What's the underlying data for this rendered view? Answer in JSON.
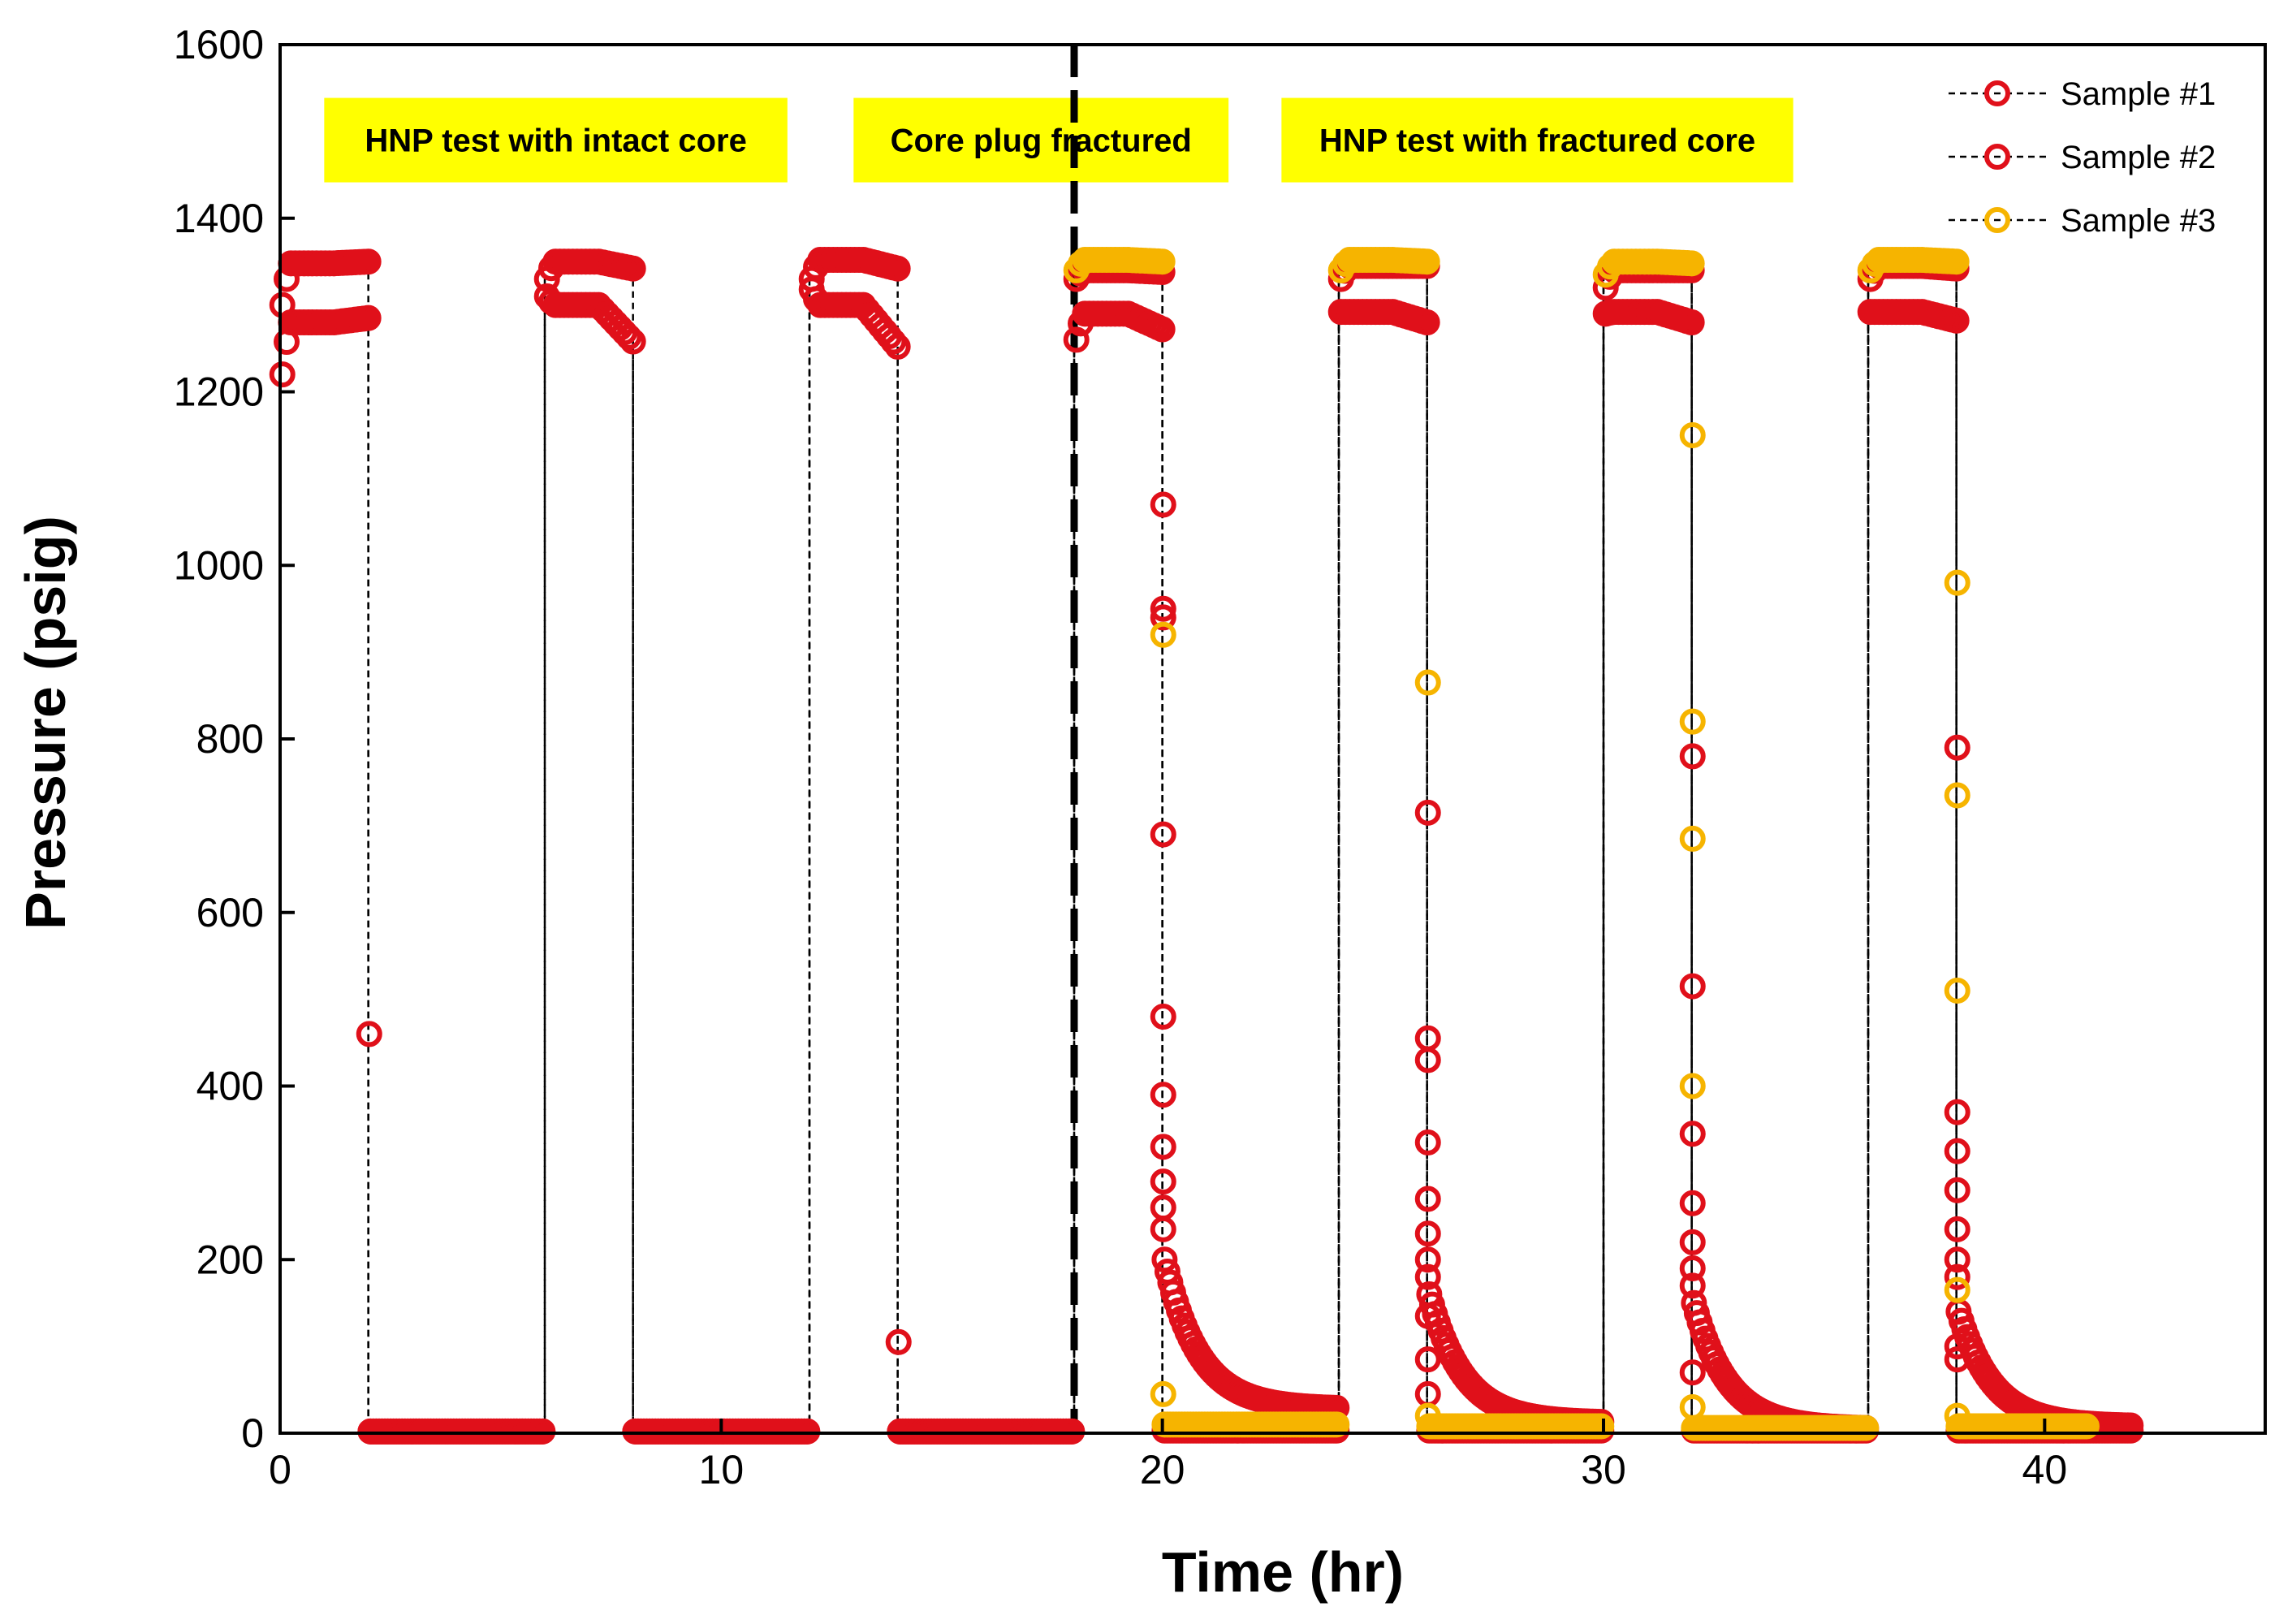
{
  "chart_data": {
    "type": "scatter",
    "xlabel": "Time (hr)",
    "ylabel": "Pressure (psig)",
    "xlim": [
      0,
      45
    ],
    "ylim": [
      0,
      1600
    ],
    "xticks": [
      0,
      10,
      20,
      30,
      40
    ],
    "yticks": [
      0,
      200,
      400,
      600,
      800,
      1000,
      1200,
      1400,
      1600
    ],
    "grid": false,
    "legend_position": "top-right",
    "divider_x": 18,
    "colors": {
      "sample1": "#e0101a",
      "sample2": "#e0101a",
      "sample3": "#f6b400",
      "annotation_bg": "#ffff00"
    },
    "annotations": [
      {
        "text": "HNP test with intact core",
        "x_from": 1,
        "x_to": 11.5,
        "y": 1490
      },
      {
        "text": "Core plug fractured",
        "x_from": 13,
        "x_to": 21.5,
        "y": 1490
      },
      {
        "text": "HNP test with fractured core",
        "x_from": 22.7,
        "x_to": 34.3,
        "y": 1490
      }
    ],
    "series": [
      {
        "name": "Sample #1",
        "color": "#e0101a",
        "cycles": [
          {
            "t0": 0.0,
            "t1": 2.0,
            "p_start": 1220,
            "p_mid": 1280,
            "p_end": 1285,
            "release": [
              460
            ],
            "t_end": 6.0,
            "p_floor": 2
          },
          {
            "t0": 6.0,
            "t1": 8.0,
            "p_start": 1310,
            "p_mid": 1300,
            "p_end": 1258,
            "release": [],
            "t_end": 12.0,
            "p_floor": 2
          },
          {
            "t0": 12.0,
            "t1": 14.0,
            "p_start": 1318,
            "p_mid": 1300,
            "p_end": 1252,
            "release": [
              105
            ],
            "t_end": 18.0,
            "p_floor": 2
          },
          {
            "t0": 18.0,
            "t1": 20.0,
            "p_start": 1260,
            "p_mid": 1290,
            "p_end": 1272,
            "release": [
              1070,
              950,
              940,
              690,
              480,
              390,
              330,
              290,
              260,
              235
            ],
            "t_end": 24.0,
            "p_floor": 28,
            "decay_from": 200
          },
          {
            "t0": 24.0,
            "t1": 26.0,
            "p_start": 1292,
            "p_mid": 1292,
            "p_end": 1280,
            "release": [
              715,
              455,
              430,
              335,
              270,
              230,
              200,
              180,
              135,
              85,
              45
            ],
            "t_end": 30.0,
            "p_floor": 12,
            "decay_from": 160
          },
          {
            "t0": 30.0,
            "t1": 32.0,
            "p_start": 1290,
            "p_mid": 1292,
            "p_end": 1280,
            "release": [
              780,
              515,
              345,
              265,
              220,
              190,
              170,
              70
            ],
            "t_end": 36.0,
            "p_floor": 5,
            "decay_from": 150
          },
          {
            "t0": 36.0,
            "t1": 38.0,
            "p_start": 1292,
            "p_mid": 1292,
            "p_end": 1282,
            "release": [
              790,
              370,
              325,
              280,
              235,
              200,
              180,
              100,
              85
            ],
            "t_end": 42.0,
            "p_floor": 8,
            "decay_from": 140
          }
        ]
      },
      {
        "name": "Sample #2",
        "color": "#e0101a",
        "cycles": [
          {
            "t0": 0.0,
            "t1": 2.0,
            "p_start": 1300,
            "p_mid": 1348,
            "p_end": 1350,
            "release": [],
            "t_end": 6.0,
            "p_floor": 2
          },
          {
            "t0": 6.0,
            "t1": 8.0,
            "p_start": 1330,
            "p_mid": 1350,
            "p_end": 1342,
            "release": [],
            "t_end": 12.0,
            "p_floor": 2
          },
          {
            "t0": 12.0,
            "t1": 14.0,
            "p_start": 1330,
            "p_mid": 1352,
            "p_end": 1342,
            "release": [],
            "t_end": 18.0,
            "p_floor": 2
          },
          {
            "t0": 18.0,
            "t1": 20.0,
            "p_start": 1330,
            "p_mid": 1340,
            "p_end": 1338,
            "release": [],
            "t_end": 24.0,
            "p_floor": 3
          },
          {
            "t0": 24.0,
            "t1": 26.0,
            "p_start": 1330,
            "p_mid": 1345,
            "p_end": 1345,
            "release": [],
            "t_end": 30.0,
            "p_floor": 3
          },
          {
            "t0": 30.0,
            "t1": 32.0,
            "p_start": 1320,
            "p_mid": 1340,
            "p_end": 1340,
            "release": [],
            "t_end": 36.0,
            "p_floor": 3
          },
          {
            "t0": 36.0,
            "t1": 38.0,
            "p_start": 1330,
            "p_mid": 1345,
            "p_end": 1342,
            "release": [],
            "t_end": 42.0,
            "p_floor": 3
          }
        ]
      },
      {
        "name": "Sample #3",
        "color": "#f6b400",
        "cycles": [
          {
            "t0": 18.0,
            "t1": 20.0,
            "p_start": 1340,
            "p_mid": 1352,
            "p_end": 1350,
            "release": [
              920,
              45
            ],
            "t_end": 24.0,
            "p_floor": 10
          },
          {
            "t0": 24.0,
            "t1": 26.0,
            "p_start": 1340,
            "p_mid": 1352,
            "p_end": 1350,
            "release": [
              865,
              20
            ],
            "t_end": 30.0,
            "p_floor": 8
          },
          {
            "t0": 30.0,
            "t1": 32.0,
            "p_start": 1335,
            "p_mid": 1350,
            "p_end": 1348,
            "release": [
              1150,
              820,
              685,
              400,
              30
            ],
            "t_end": 36.0,
            "p_floor": 6
          },
          {
            "t0": 36.0,
            "t1": 38.0,
            "p_start": 1340,
            "p_mid": 1352,
            "p_end": 1350,
            "release": [
              980,
              735,
              510,
              165,
              20
            ],
            "t_end": 41.0,
            "p_floor": 8
          }
        ]
      }
    ]
  }
}
